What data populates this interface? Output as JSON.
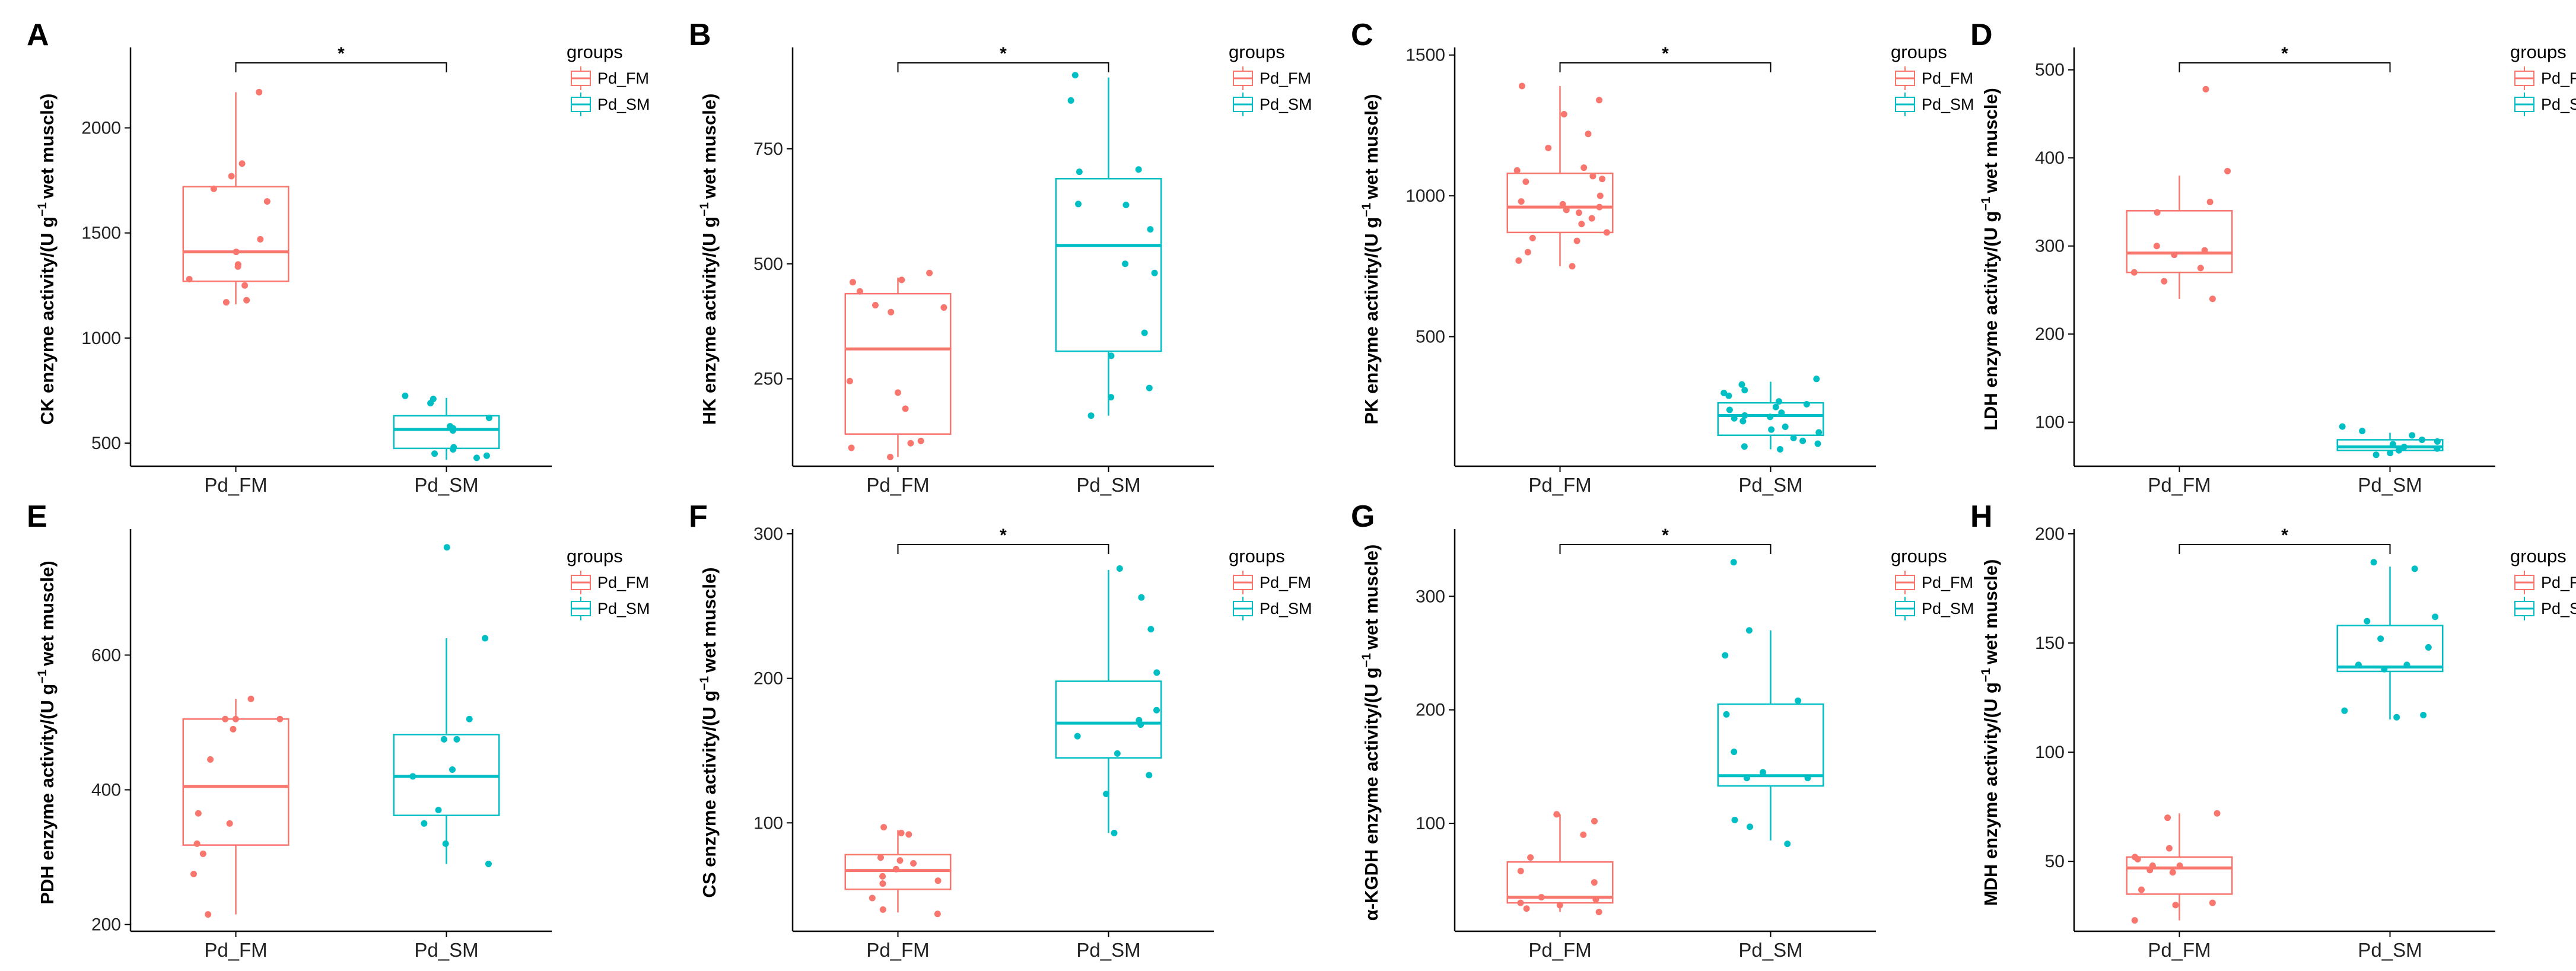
{
  "colors": {
    "fm": "#F8766D",
    "sm": "#00BFC4",
    "axis": "#000000"
  },
  "chart_data": [
    {
      "type": "boxplot",
      "panel": "A",
      "ylabel_main": "CK enzyme activity/(U g",
      "ylabel_sup": "−1",
      "ylabel_end": "wet  muscle)",
      "categories": [
        "Pd_FM",
        "Pd_SM"
      ],
      "ylim": [
        390,
        2360
      ],
      "yticks": [
        500,
        1000,
        1500,
        2000
      ],
      "legend_title": "groups",
      "legend": [
        "Pd_FM",
        "Pd_SM"
      ],
      "significance": "*",
      "boxes": [
        {
          "group": "Pd_FM",
          "min": 1160,
          "q1": 1270,
          "median": 1410,
          "q3": 1720,
          "max": 2170,
          "points": [
            2170,
            1830,
            1770,
            1710,
            1650,
            1470,
            1410,
            1350,
            1340,
            1280,
            1250,
            1180,
            1170
          ]
        },
        {
          "group": "Pd_SM",
          "min": 420,
          "q1": 475,
          "median": 565,
          "q3": 630,
          "max": 715,
          "points": [
            725,
            710,
            690,
            620,
            580,
            570,
            560,
            480,
            470,
            450,
            440,
            430
          ]
        }
      ]
    },
    {
      "type": "boxplot",
      "panel": "B",
      "ylabel_main": "HK enzyme activity/(U g",
      "ylabel_sup": "−1",
      "ylabel_end": "wet  muscle)",
      "categories": [
        "Pd_FM",
        "Pd_SM"
      ],
      "ylim": [
        60,
        960
      ],
      "yticks": [
        250,
        500,
        750
      ],
      "legend_title": "groups",
      "legend": [
        "Pd_FM",
        "Pd_SM"
      ],
      "significance": "*",
      "boxes": [
        {
          "group": "Pd_FM",
          "min": 80,
          "q1": 130,
          "median": 315,
          "q3": 435,
          "max": 470,
          "points": [
            480,
            465,
            460,
            440,
            410,
            405,
            395,
            245,
            220,
            185,
            115,
            110,
            100,
            80
          ]
        },
        {
          "group": "Pd_SM",
          "min": 170,
          "q1": 310,
          "median": 540,
          "q3": 685,
          "max": 905,
          "points": [
            910,
            855,
            705,
            700,
            630,
            628,
            575,
            500,
            480,
            350,
            300,
            230,
            210,
            170
          ]
        }
      ]
    },
    {
      "type": "boxplot",
      "panel": "C",
      "ylabel_main": "PK enzyme activity/(U g",
      "ylabel_sup": "−1",
      "ylabel_end": "wet  muscle)",
      "categories": [
        "Pd_FM",
        "Pd_SM"
      ],
      "ylim": [
        40,
        1510
      ],
      "yticks": [
        500,
        1000,
        1500
      ],
      "legend_title": "groups",
      "legend": [
        "Pd_FM",
        "Pd_SM"
      ],
      "significance": "*",
      "boxes": [
        {
          "group": "Pd_FM",
          "min": 750,
          "q1": 870,
          "median": 960,
          "q3": 1080,
          "max": 1390,
          "points": [
            1390,
            1340,
            1290,
            1220,
            1170,
            1100,
            1090,
            1070,
            1060,
            1050,
            1000,
            980,
            970,
            960,
            950,
            940,
            920,
            900,
            870,
            850,
            840,
            800,
            770,
            750
          ]
        },
        {
          "group": "Pd_SM",
          "min": 100,
          "q1": 150,
          "median": 220,
          "q3": 265,
          "max": 340,
          "points": [
            350,
            330,
            310,
            300,
            290,
            270,
            260,
            250,
            240,
            230,
            220,
            215,
            210,
            200,
            180,
            170,
            160,
            140,
            130,
            120,
            110,
            100
          ]
        }
      ]
    },
    {
      "type": "boxplot",
      "panel": "D",
      "ylabel_main": "LDH enzyme activity/(U g",
      "ylabel_sup": "−1",
      "ylabel_end": "wet  muscle)",
      "categories": [
        "Pd_FM",
        "Pd_SM"
      ],
      "ylim": [
        50,
        520
      ],
      "yticks": [
        100,
        200,
        300,
        400,
        500
      ],
      "legend_title": "groups",
      "legend": [
        "Pd_FM",
        "Pd_SM"
      ],
      "significance": "*",
      "boxes": [
        {
          "group": "Pd_FM",
          "min": 240,
          "q1": 270,
          "median": 292,
          "q3": 340,
          "max": 380,
          "points": [
            478,
            385,
            350,
            338,
            300,
            295,
            290,
            275,
            270,
            260,
            240
          ]
        },
        {
          "group": "Pd_SM",
          "min": 63,
          "q1": 68,
          "median": 72,
          "q3": 80,
          "max": 88,
          "points": [
            95,
            90,
            85,
            80,
            78,
            75,
            72,
            70,
            68,
            65,
            63
          ]
        }
      ]
    },
    {
      "type": "boxplot",
      "panel": "E",
      "ylabel_main": "PDH enzyme activity/(U g",
      "ylabel_sup": "−1",
      "ylabel_end": "wet  muscle)",
      "categories": [
        "Pd_FM",
        "Pd_SM"
      ],
      "ylim": [
        190,
        780
      ],
      "yticks": [
        200,
        400,
        600
      ],
      "legend_title": "groups",
      "legend": [
        "Pd_FM",
        "Pd_SM"
      ],
      "significance": "",
      "boxes": [
        {
          "group": "Pd_FM",
          "min": 215,
          "q1": 318,
          "median": 405,
          "q3": 505,
          "max": 535,
          "points": [
            535,
            505,
            505,
            505,
            490,
            445,
            365,
            350,
            320,
            305,
            275,
            215
          ]
        },
        {
          "group": "Pd_SM",
          "min": 290,
          "q1": 362,
          "median": 420,
          "q3": 482,
          "max": 625,
          "points": [
            760,
            625,
            505,
            475,
            475,
            430,
            420,
            370,
            350,
            320,
            290
          ]
        }
      ]
    },
    {
      "type": "boxplot",
      "panel": "F",
      "ylabel_main": "CS enzyme activity/(U g",
      "ylabel_sup": "−1",
      "ylabel_end": "wet  muscle)",
      "categories": [
        "Pd_FM",
        "Pd_SM"
      ],
      "ylim": [
        25,
        300
      ],
      "yticks": [
        100,
        200,
        300
      ],
      "legend_title": "groups",
      "legend": [
        "Pd_FM",
        "Pd_SM"
      ],
      "significance": "*",
      "boxes": [
        {
          "group": "Pd_FM",
          "min": 38,
          "q1": 54,
          "median": 67,
          "q3": 78,
          "max": 95,
          "points": [
            97,
            93,
            92,
            76,
            74,
            72,
            68,
            63,
            60,
            58,
            48,
            40,
            37
          ]
        },
        {
          "group": "Pd_SM",
          "min": 93,
          "q1": 145,
          "median": 169,
          "q3": 198,
          "max": 275,
          "points": [
            276,
            256,
            234,
            204,
            178,
            171,
            168,
            160,
            148,
            133,
            120,
            93
          ]
        }
      ]
    },
    {
      "type": "boxplot",
      "panel": "G",
      "ylabel_main": "α-KGDH enzyme activity/(U g",
      "ylabel_sup": "−1",
      "ylabel_end": "wet  muscle)",
      "categories": [
        "Pd_FM",
        "Pd_SM"
      ],
      "ylim": [
        5,
        355
      ],
      "yticks": [
        100,
        200,
        300
      ],
      "legend_title": "groups",
      "legend": [
        "Pd_FM",
        "Pd_SM"
      ],
      "significance": "*",
      "boxes": [
        {
          "group": "Pd_FM",
          "min": 22,
          "q1": 30,
          "median": 35,
          "q3": 66,
          "max": 108,
          "points": [
            108,
            102,
            90,
            70,
            58,
            48,
            35,
            33,
            30,
            28,
            25,
            22
          ]
        },
        {
          "group": "Pd_SM",
          "min": 85,
          "q1": 133,
          "median": 142,
          "q3": 205,
          "max": 270,
          "points": [
            330,
            270,
            248,
            208,
            196,
            163,
            145,
            140,
            140,
            103,
            97,
            82
          ]
        }
      ]
    },
    {
      "type": "boxplot",
      "panel": "H",
      "ylabel_main": "MDH enzyme activity/(U g",
      "ylabel_sup": "−1",
      "ylabel_end": "wet  muscle)",
      "categories": [
        "Pd_FM",
        "Pd_SM"
      ],
      "ylim": [
        18,
        200
      ],
      "yticks": [
        50,
        100,
        150,
        200
      ],
      "legend_title": "groups",
      "legend": [
        "Pd_FM",
        "Pd_SM"
      ],
      "significance": "*",
      "boxes": [
        {
          "group": "Pd_FM",
          "min": 23,
          "q1": 35,
          "median": 47,
          "q3": 52,
          "max": 72,
          "points": [
            72,
            70,
            56,
            52,
            51,
            48,
            48,
            46,
            45,
            37,
            31,
            30,
            23
          ]
        },
        {
          "group": "Pd_SM",
          "min": 115,
          "q1": 137,
          "median": 139,
          "q3": 158,
          "max": 185,
          "points": [
            187,
            184,
            162,
            160,
            152,
            148,
            140,
            140,
            138,
            119,
            117,
            116
          ]
        }
      ]
    }
  ]
}
